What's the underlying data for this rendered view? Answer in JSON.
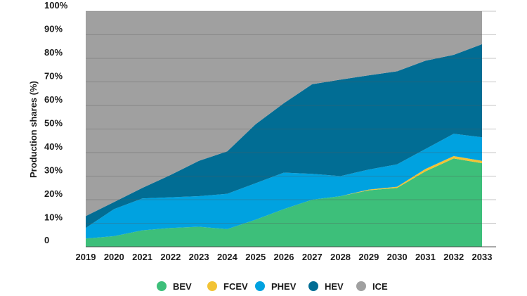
{
  "chart_data": {
    "type": "area",
    "stacked": true,
    "title": "",
    "xlabel": "",
    "ylabel": "Production shares (%)",
    "ylim": [
      0,
      100
    ],
    "y_ticks": [
      0,
      10,
      20,
      30,
      40,
      50,
      60,
      70,
      80,
      90,
      100
    ],
    "y_tick_labels": [
      "0",
      "10%",
      "20%",
      "30%",
      "40%",
      "50%",
      "60%",
      "70%",
      "80%",
      "90%",
      "100%"
    ],
    "categories": [
      "2019",
      "2020",
      "2021",
      "2022",
      "2023",
      "2024",
      "2025",
      "2026",
      "2027",
      "2028",
      "2029",
      "2030",
      "2031",
      "2032",
      "2033"
    ],
    "grid": "horizontal",
    "legend_position": "bottom",
    "series": [
      {
        "name": "BEV",
        "color": "#3dbf7a",
        "values": [
          3.5,
          4.5,
          7,
          8,
          8.5,
          7.5,
          11.5,
          16,
          20,
          21.5,
          24,
          25,
          32,
          37.5,
          35.5
        ]
      },
      {
        "name": "FCEV",
        "color": "#f2c335",
        "values": [
          0,
          0,
          0,
          0,
          0,
          0,
          0,
          0,
          0,
          0,
          0.3,
          0.5,
          1,
          1,
          1
        ]
      },
      {
        "name": "PHEV",
        "color": "#00a2e0",
        "values": [
          4.5,
          11.5,
          13.5,
          13,
          13,
          15,
          15.5,
          15.5,
          11,
          8.5,
          8.5,
          9.5,
          8.5,
          9.5,
          10
        ]
      },
      {
        "name": "HEV",
        "color": "#016d94",
        "values": [
          5,
          3,
          4.5,
          9.5,
          15,
          18,
          25,
          29.5,
          38,
          41,
          40,
          39.5,
          37.5,
          33.5,
          39.5
        ]
      },
      {
        "name": "ICE",
        "color": "#a0a0a0",
        "values": [
          87,
          81,
          75,
          69.5,
          63.5,
          59.5,
          48,
          39,
          31,
          29,
          27.2,
          25.5,
          21,
          18.5,
          14
        ]
      }
    ]
  }
}
